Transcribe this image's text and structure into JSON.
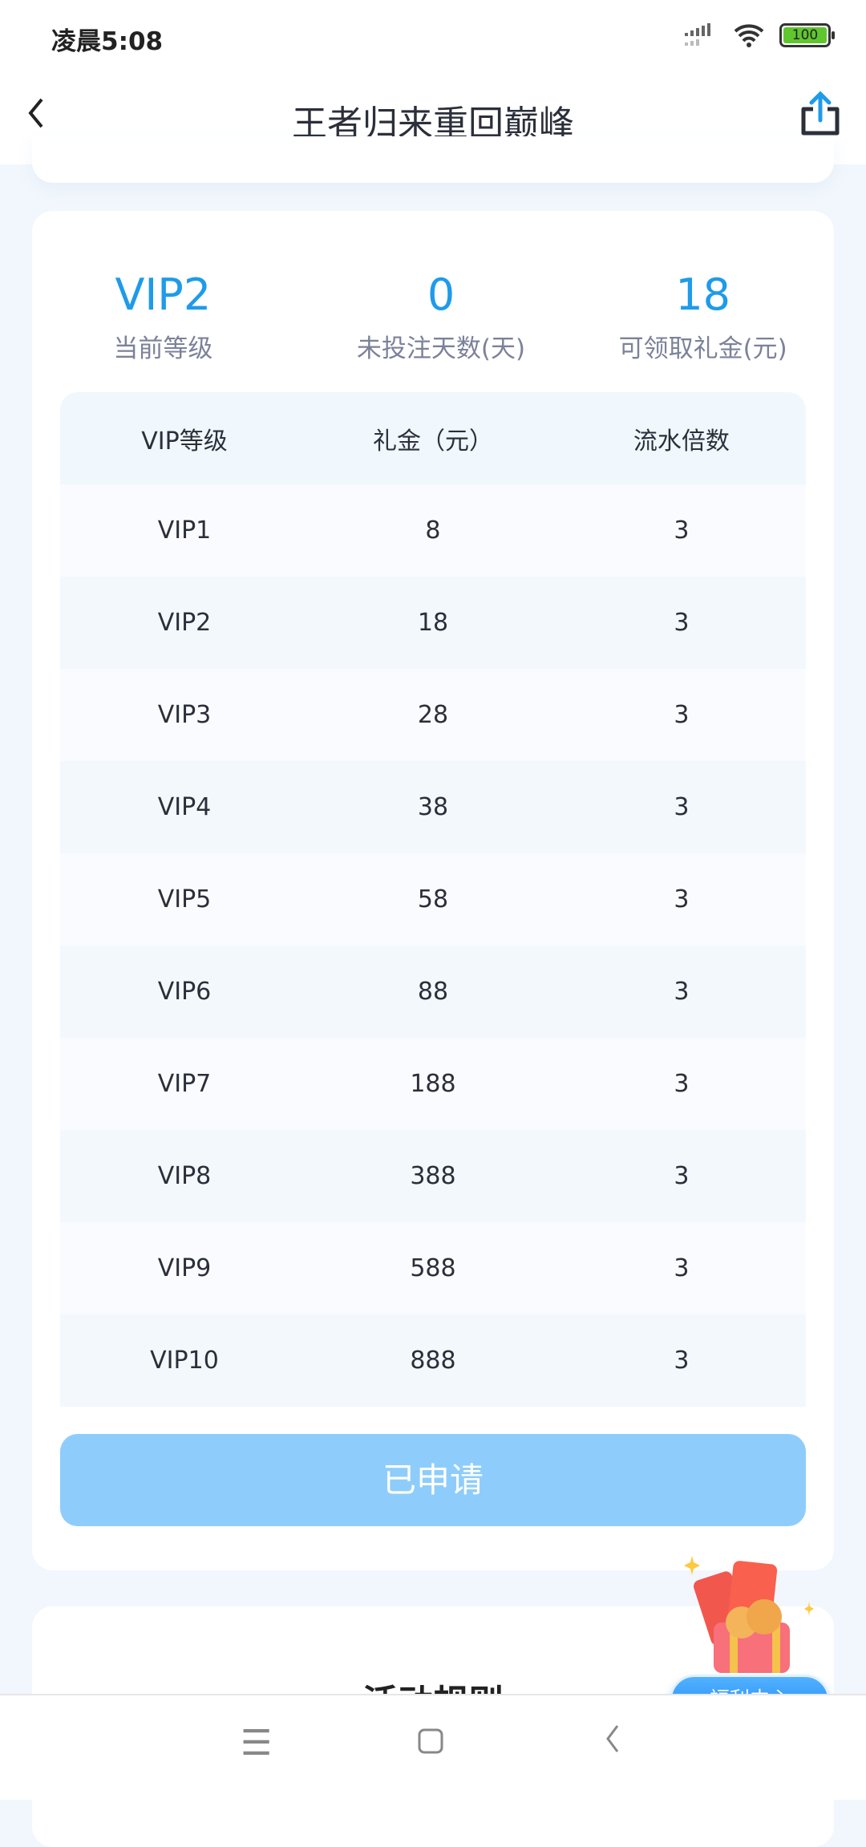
{
  "status_bar": {
    "time": "凌晨5:08",
    "battery": "100"
  },
  "header": {
    "title": "王者归来重回巅峰"
  },
  "stats": [
    {
      "value": "VIP2",
      "label": "当前等级"
    },
    {
      "value": "0",
      "label": "未投注天数(天)"
    },
    {
      "value": "18",
      "label": "可领取礼金(元)"
    }
  ],
  "table": {
    "headers": [
      "VIP等级",
      "礼金（元）",
      "流水倍数"
    ],
    "rows": [
      [
        "VIP1",
        "8",
        "3"
      ],
      [
        "VIP2",
        "18",
        "3"
      ],
      [
        "VIP3",
        "28",
        "3"
      ],
      [
        "VIP4",
        "38",
        "3"
      ],
      [
        "VIP5",
        "58",
        "3"
      ],
      [
        "VIP6",
        "88",
        "3"
      ],
      [
        "VIP7",
        "188",
        "3"
      ],
      [
        "VIP8",
        "388",
        "3"
      ],
      [
        "VIP9",
        "588",
        "3"
      ],
      [
        "VIP10",
        "888",
        "3"
      ]
    ]
  },
  "apply_button": "已申请",
  "welfare_center": "福利中心",
  "rules_title": "活动规则",
  "colors": {
    "accent": "#1e9bea",
    "button": "#8ecdfb",
    "background": "#f2f7fd"
  }
}
